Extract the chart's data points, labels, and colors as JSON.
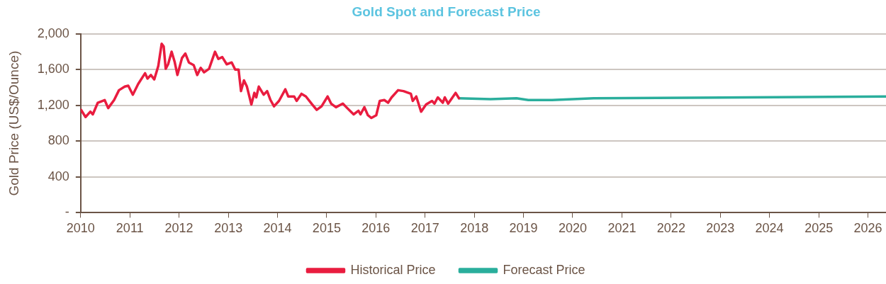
{
  "chart_data": {
    "type": "line",
    "title": "Gold Spot and Forecast Price",
    "ylabel": "Gold Price (US$/Ounce)",
    "xlim": [
      "2010",
      "2026-05-15"
    ],
    "xticks": [
      "2010",
      "2011",
      "2012",
      "2013",
      "2014",
      "2015",
      "2016",
      "2017",
      "2018",
      "2019",
      "2020",
      "2021",
      "2022",
      "2023",
      "2024",
      "2025",
      "2026"
    ],
    "ylim": [
      0,
      2000
    ],
    "yticks": [
      {
        "value": 0,
        "label": "-"
      },
      400,
      800,
      {
        "value": 1200,
        "label": "1,200"
      },
      {
        "value": 1600,
        "label": "1,600"
      },
      {
        "value": 2000,
        "label": "2,000"
      }
    ],
    "grid": "y",
    "legend": "bottom",
    "marker": "none",
    "series": [
      {
        "name": "Historical Price",
        "color": "#e91c3f",
        "x": [
          "2010-01-04",
          "2010-02-06",
          "2010-03-14",
          "2010-04-01",
          "2010-05-08",
          "2010-06-28",
          "2010-07-24",
          "2010-09-06",
          "2010-10-12",
          "2010-11-24",
          "2010-12-20",
          "2011-01-23",
          "2011-03-04",
          "2011-04-24",
          "2011-05-12",
          "2011-06-06",
          "2011-07-01",
          "2011-07-31",
          "2011-08-25",
          "2011-09-09",
          "2011-09-24",
          "2011-10-12",
          "2011-11-07",
          "2011-11-29",
          "2011-12-20",
          "2012-01-23",
          "2012-02-17",
          "2012-03-14",
          "2012-04-19",
          "2012-05-15",
          "2012-06-10",
          "2012-07-05",
          "2012-08-11",
          "2012-09-24",
          "2012-10-19",
          "2012-11-17",
          "2012-12-20",
          "2013-01-26",
          "2013-02-21",
          "2013-03-18",
          "2013-04-05",
          "2013-04-27",
          "2013-05-19",
          "2013-06-21",
          "2013-07-13",
          "2013-07-27",
          "2013-08-15",
          "2013-09-20",
          "2013-10-16",
          "2013-11-10",
          "2013-12-06",
          "2014-01-12",
          "2014-02-28",
          "2014-03-22",
          "2014-05-05",
          "2014-05-23",
          "2014-06-28",
          "2014-07-31",
          "2014-09-16",
          "2014-10-19",
          "2014-11-24",
          "2015-01-08",
          "2015-02-03",
          "2015-03-11",
          "2015-05-01",
          "2015-05-27",
          "2015-07-20",
          "2015-08-25",
          "2015-09-09",
          "2015-10-08",
          "2015-11-03",
          "2015-11-29",
          "2016-01-04",
          "2016-01-30",
          "2016-03-04",
          "2016-04-01",
          "2016-04-27",
          "2016-06-14",
          "2016-07-24",
          "2016-09-17",
          "2016-10-01",
          "2016-10-27",
          "2016-12-02",
          "2017-01-08",
          "2017-02-21",
          "2017-03-11",
          "2017-04-05",
          "2017-05-12",
          "2017-05-27",
          "2017-06-21",
          "2017-08-15",
          "2017-09-09"
        ],
        "values": [
          1150,
          1070,
          1130,
          1100,
          1230,
          1260,
          1170,
          1260,
          1370,
          1410,
          1420,
          1320,
          1440,
          1560,
          1500,
          1540,
          1490,
          1640,
          1890,
          1860,
          1610,
          1660,
          1800,
          1690,
          1540,
          1730,
          1780,
          1680,
          1650,
          1540,
          1620,
          1570,
          1610,
          1800,
          1720,
          1740,
          1660,
          1680,
          1600,
          1600,
          1360,
          1480,
          1410,
          1210,
          1340,
          1290,
          1410,
          1320,
          1360,
          1260,
          1190,
          1250,
          1380,
          1300,
          1300,
          1250,
          1330,
          1300,
          1210,
          1150,
          1190,
          1300,
          1220,
          1180,
          1220,
          1180,
          1100,
          1140,
          1100,
          1180,
          1090,
          1060,
          1090,
          1250,
          1260,
          1230,
          1290,
          1370,
          1360,
          1330,
          1250,
          1300,
          1130,
          1210,
          1250,
          1220,
          1290,
          1230,
          1290,
          1220,
          1340,
          1280
        ]
      },
      {
        "name": "Forecast Price",
        "color": "#2aae9c",
        "x": [
          "2017-09-09",
          "2018-05-01",
          "2018-11-10",
          "2019-02-06",
          "2019-08-01",
          "2020-06-05",
          "2026-05-15"
        ],
        "values": [
          1280,
          1270,
          1280,
          1260,
          1260,
          1280,
          1300
        ]
      }
    ]
  }
}
